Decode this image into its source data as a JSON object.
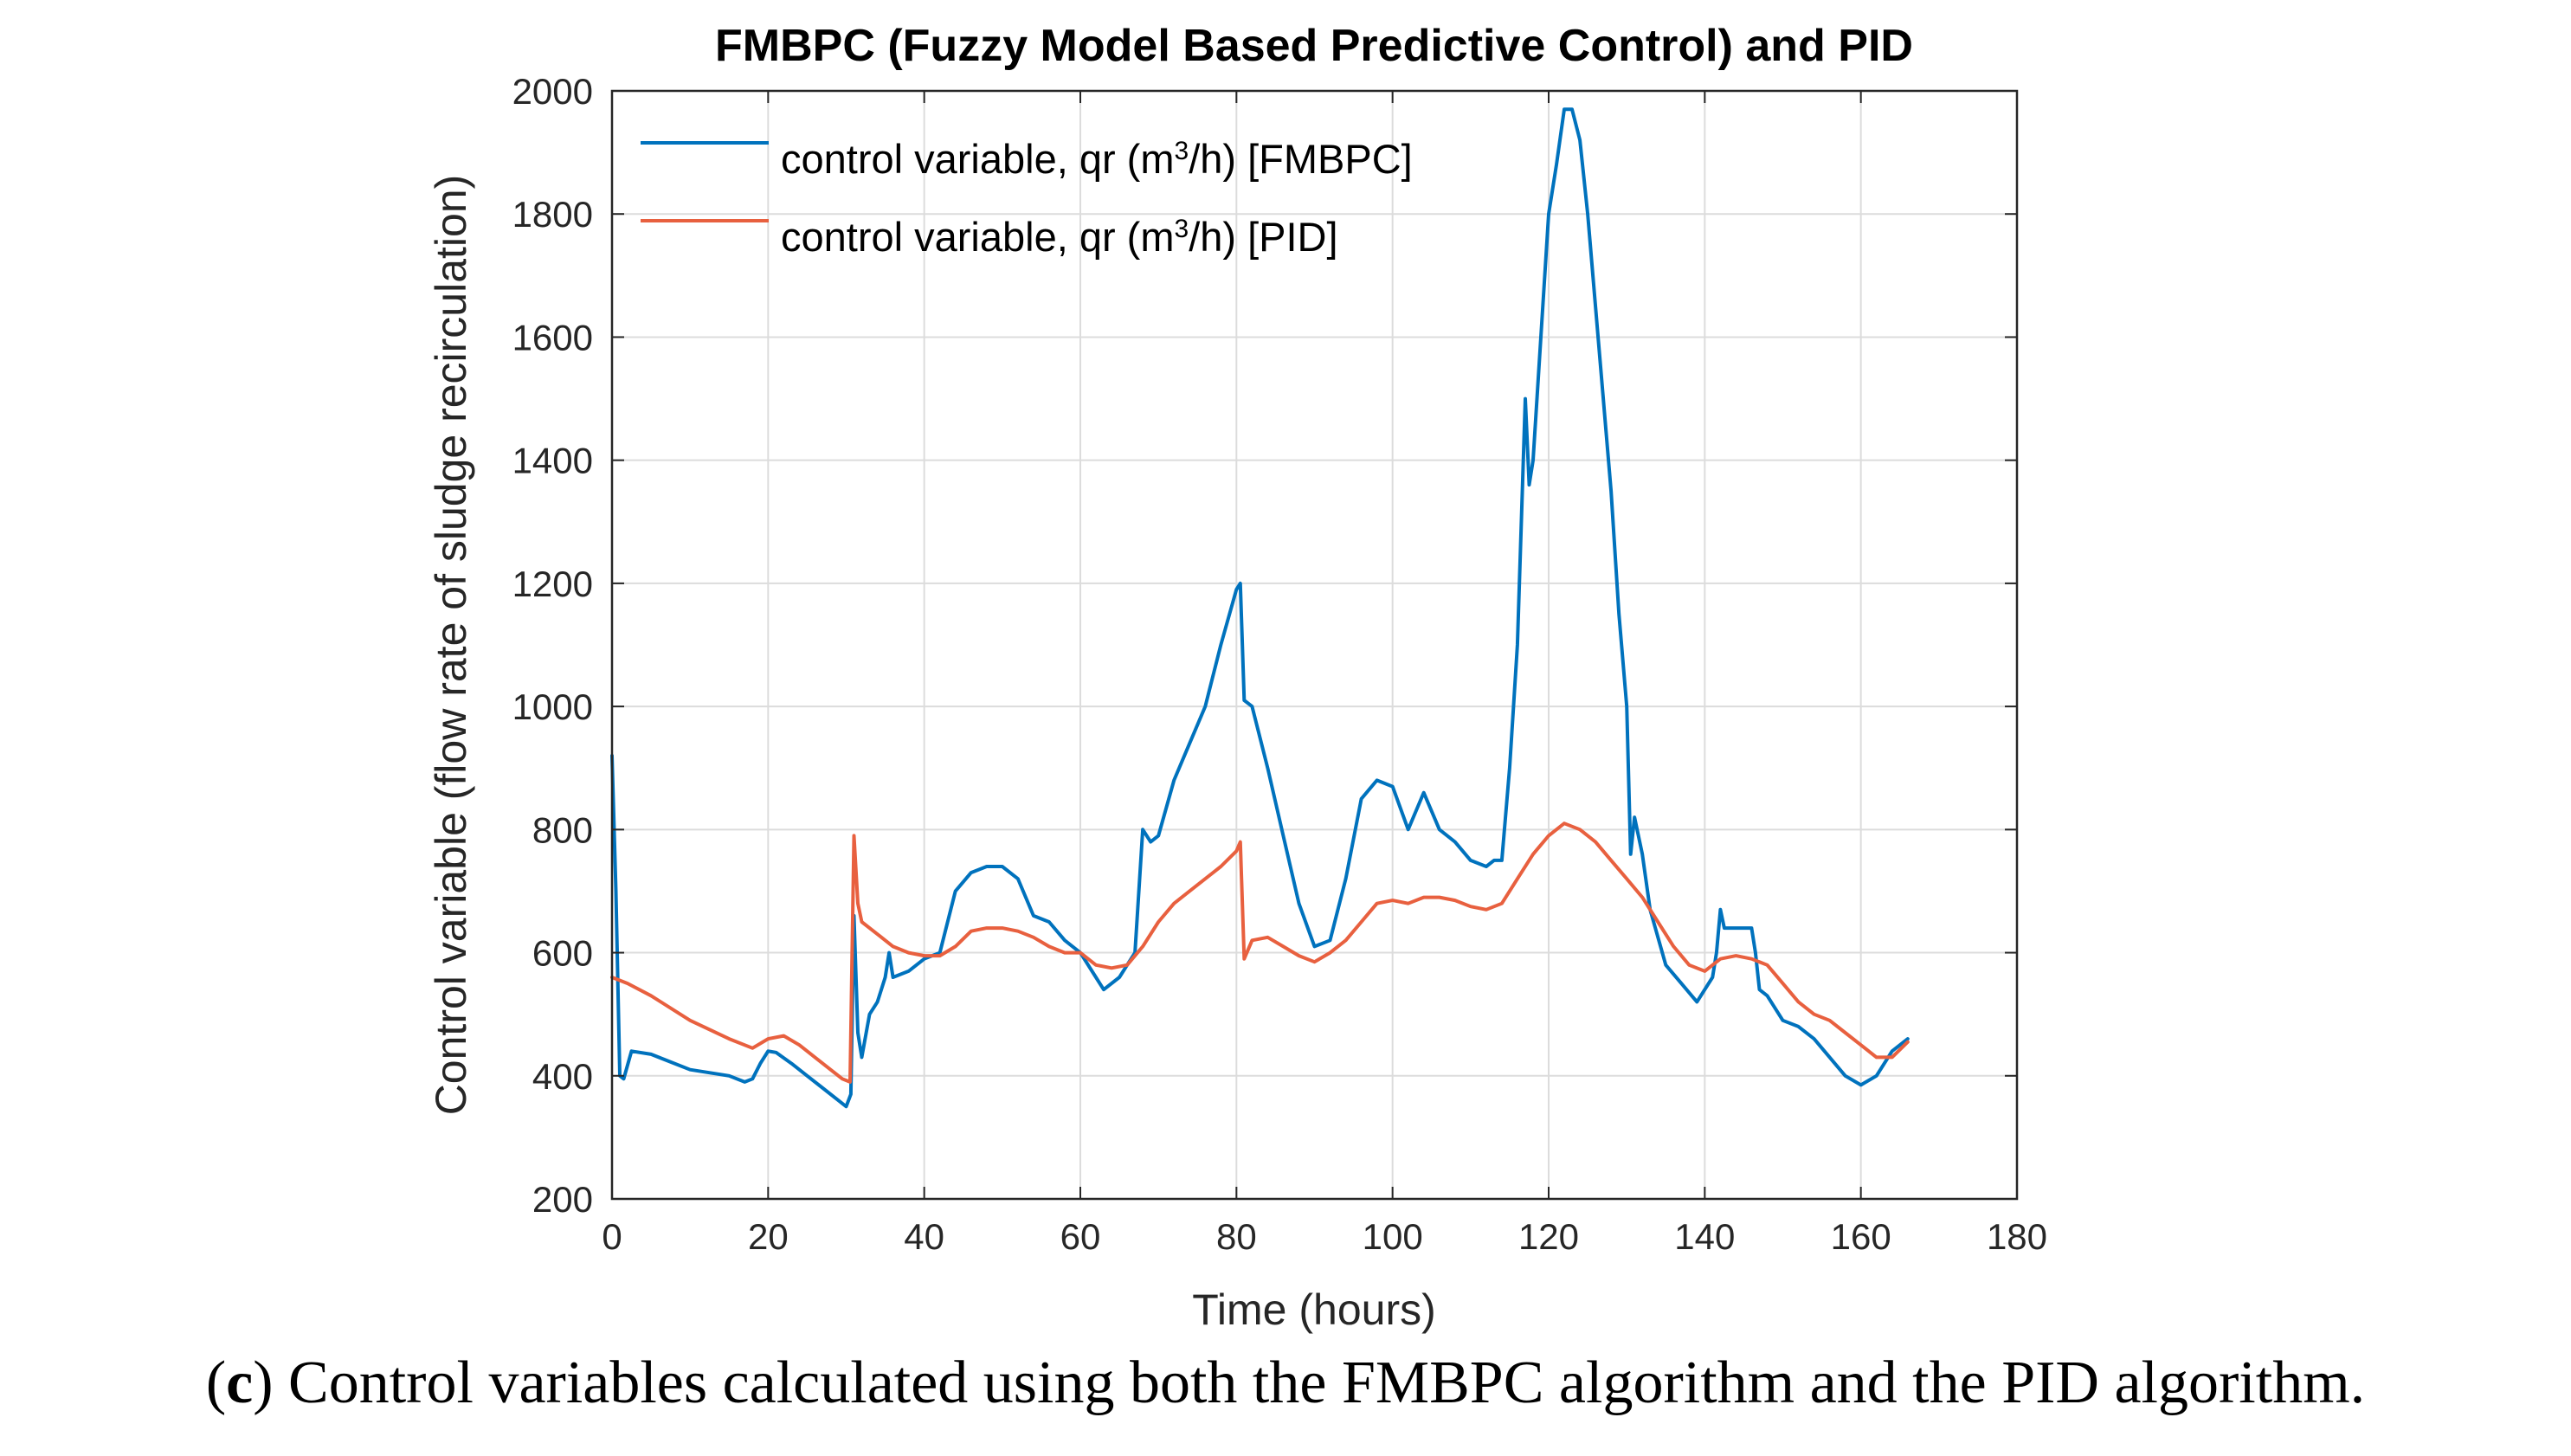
{
  "chart_data": {
    "type": "line",
    "title": "FMBPC (Fuzzy Model Based Predictive Control) and PID",
    "xlabel": "Time (hours)",
    "ylabel": "Control variable (flow rate of sludge recirculation)",
    "xlim": [
      0,
      180
    ],
    "ylim": [
      200,
      2000
    ],
    "xticks": [
      0,
      20,
      40,
      60,
      80,
      100,
      120,
      140,
      160,
      180
    ],
    "yticks": [
      200,
      400,
      600,
      800,
      1000,
      1200,
      1400,
      1600,
      1800,
      2000
    ],
    "grid": true,
    "legend_position": "top-left",
    "series": [
      {
        "name": "control variable, qr (m3/h) [FMBPC]",
        "legend_main": "control variable, qr (m",
        "legend_sup": "3",
        "legend_tail": "/h) [FMBPC]",
        "color": "#0072BD",
        "x": [
          0,
          0.5,
          1,
          1.5,
          2.5,
          5,
          10,
          15,
          17,
          18,
          19,
          20,
          21,
          23,
          25,
          27,
          29,
          30,
          30.6,
          31,
          31.5,
          32,
          33,
          34,
          35,
          35.5,
          36,
          38,
          40,
          42,
          44,
          46,
          48,
          50,
          52,
          54,
          56,
          58,
          60,
          62,
          63,
          65,
          67,
          68,
          69,
          70,
          72,
          74,
          76,
          78,
          80,
          80.5,
          81,
          82,
          84,
          86,
          88,
          90,
          92,
          94,
          96,
          98,
          100,
          102,
          103,
          104,
          106,
          108,
          110,
          112,
          113,
          114,
          115,
          116,
          117,
          117.5,
          118,
          119,
          120,
          121,
          122,
          123,
          124,
          125,
          126,
          128,
          129,
          130,
          130.5,
          131,
          132,
          133,
          135,
          137,
          139,
          141,
          141.5,
          142,
          142.5,
          143,
          145,
          146,
          146.5,
          147,
          148,
          150,
          152,
          154,
          156,
          158,
          160,
          162,
          164,
          166
        ],
        "y": [
          920,
          700,
          400,
          395,
          440,
          435,
          410,
          400,
          390,
          395,
          420,
          440,
          438,
          420,
          400,
          380,
          360,
          350,
          370,
          660,
          470,
          430,
          500,
          520,
          560,
          600,
          560,
          570,
          590,
          600,
          700,
          730,
          740,
          740,
          720,
          660,
          650,
          620,
          600,
          560,
          540,
          560,
          600,
          800,
          780,
          790,
          880,
          940,
          1000,
          1100,
          1190,
          1200,
          1010,
          1000,
          900,
          790,
          680,
          610,
          620,
          720,
          850,
          880,
          870,
          800,
          830,
          860,
          800,
          780,
          750,
          740,
          750,
          750,
          900,
          1100,
          1500,
          1360,
          1400,
          1600,
          1800,
          1880,
          1970,
          1970,
          1920,
          1800,
          1650,
          1350,
          1150,
          1000,
          760,
          820,
          760,
          670,
          580,
          550,
          520,
          560,
          600,
          670,
          640,
          640,
          640,
          640,
          600,
          540,
          530,
          490,
          480,
          460,
          430,
          400,
          385,
          400,
          440,
          460
        ]
      },
      {
        "name": "control variable, qr (m3/h) [PID]",
        "legend_main": "control variable, qr (m",
        "legend_sup": "3",
        "legend_tail": "/h) [PID]",
        "color": "#E8603F",
        "x": [
          0,
          2,
          5,
          10,
          15,
          18,
          20,
          22,
          24,
          26,
          28,
          29.5,
          30.5,
          31,
          31.5,
          32,
          34,
          36,
          38,
          40,
          42,
          44,
          46,
          48,
          50,
          52,
          54,
          56,
          58,
          60,
          62,
          64,
          66,
          68,
          70,
          72,
          74,
          76,
          78,
          80,
          80.5,
          81,
          82,
          84,
          86,
          88,
          90,
          92,
          94,
          96,
          98,
          100,
          102,
          104,
          106,
          108,
          110,
          112,
          114,
          116,
          118,
          120,
          122,
          124,
          126,
          128,
          130,
          132,
          134,
          136,
          138,
          140,
          142,
          144,
          146,
          148,
          150,
          152,
          154,
          156,
          158,
          160,
          162,
          164,
          166
        ],
        "y": [
          560,
          550,
          530,
          490,
          460,
          445,
          460,
          465,
          450,
          430,
          410,
          395,
          390,
          790,
          680,
          650,
          630,
          610,
          600,
          595,
          595,
          610,
          635,
          640,
          640,
          635,
          625,
          610,
          600,
          600,
          580,
          575,
          580,
          610,
          650,
          680,
          700,
          720,
          740,
          765,
          780,
          590,
          620,
          625,
          610,
          595,
          585,
          600,
          620,
          650,
          680,
          685,
          680,
          690,
          690,
          685,
          675,
          670,
          680,
          720,
          760,
          790,
          810,
          800,
          780,
          750,
          720,
          690,
          650,
          610,
          580,
          570,
          590,
          595,
          590,
          580,
          550,
          520,
          500,
          490,
          470,
          450,
          430,
          430,
          455
        ]
      }
    ]
  },
  "caption": {
    "label": "c",
    "text": "Control variables calculated using both the FMBPC algorithm and the PID algorithm."
  }
}
